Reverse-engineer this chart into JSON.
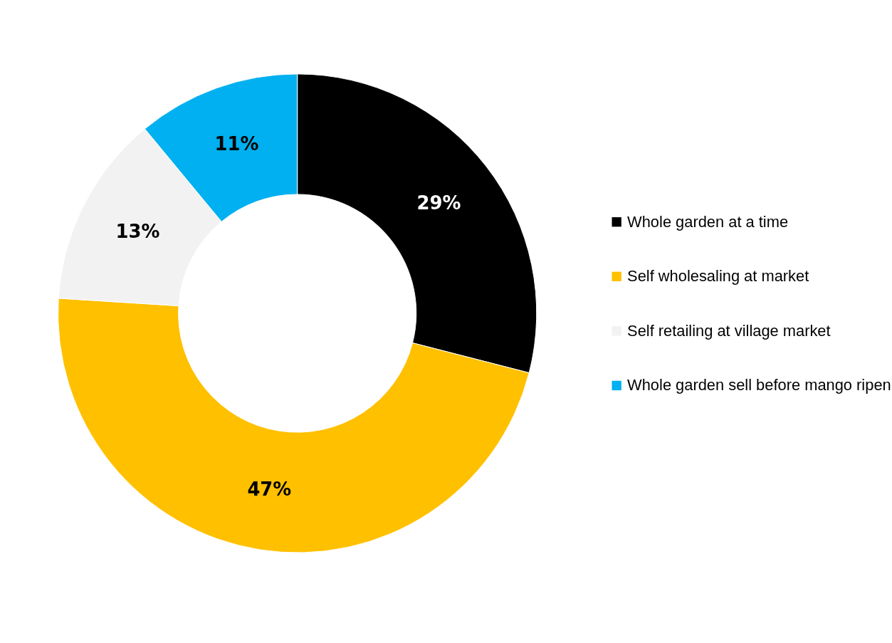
{
  "chart_data": {
    "type": "donut",
    "categories": [
      "Whole garden at a time",
      "Self wholesaling at market",
      "Self retailing at village market",
      "Whole garden sell before mango ripen"
    ],
    "values": [
      29,
      47,
      13,
      11
    ],
    "colors": [
      "#000000",
      "#ffc000",
      "#f2f2f2",
      "#00b0f0"
    ],
    "value_labels": [
      "29%",
      "47%",
      "13%",
      "11%"
    ],
    "legend": "right"
  }
}
